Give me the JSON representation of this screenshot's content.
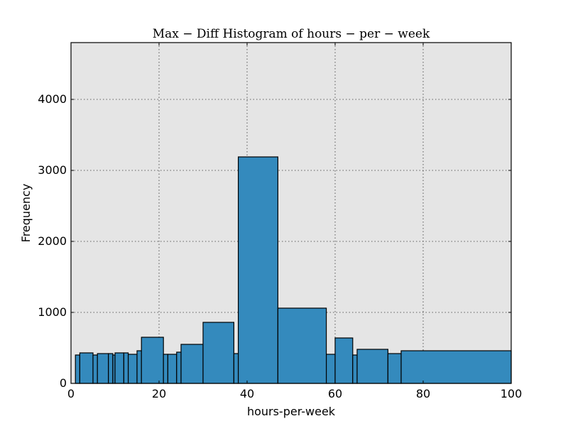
{
  "chart_data": {
    "type": "bar",
    "title": "Max − Diff Histogram of hours − per − week",
    "xlabel": "hours-per-week",
    "ylabel": "Frequency",
    "xlim": [
      0,
      100
    ],
    "ylim": [
      0,
      4800
    ],
    "xticks": [
      0,
      20,
      40,
      60,
      80,
      100
    ],
    "yticks": [
      0,
      1000,
      2000,
      3000,
      4000
    ],
    "grid": true,
    "bins": [
      {
        "x0": 1,
        "x1": 2,
        "value": 400
      },
      {
        "x0": 2,
        "x1": 5,
        "value": 430
      },
      {
        "x0": 5,
        "x1": 6,
        "value": 400
      },
      {
        "x0": 6,
        "x1": 8.5,
        "value": 420
      },
      {
        "x0": 8.5,
        "x1": 9.5,
        "value": 420
      },
      {
        "x0": 9.5,
        "x1": 10,
        "value": 400
      },
      {
        "x0": 10,
        "x1": 12,
        "value": 430
      },
      {
        "x0": 12,
        "x1": 13,
        "value": 430
      },
      {
        "x0": 13,
        "x1": 15,
        "value": 410
      },
      {
        "x0": 15,
        "x1": 16,
        "value": 460
      },
      {
        "x0": 16,
        "x1": 21,
        "value": 650
      },
      {
        "x0": 21,
        "x1": 22,
        "value": 410
      },
      {
        "x0": 22,
        "x1": 24,
        "value": 410
      },
      {
        "x0": 24,
        "x1": 25,
        "value": 440
      },
      {
        "x0": 25,
        "x1": 30,
        "value": 550
      },
      {
        "x0": 30,
        "x1": 37,
        "value": 860
      },
      {
        "x0": 37,
        "x1": 38,
        "value": 420
      },
      {
        "x0": 38,
        "x1": 47,
        "value": 3190
      },
      {
        "x0": 47,
        "x1": 58,
        "value": 1060
      },
      {
        "x0": 58,
        "x1": 60,
        "value": 410
      },
      {
        "x0": 60,
        "x1": 64,
        "value": 640
      },
      {
        "x0": 64,
        "x1": 65,
        "value": 400
      },
      {
        "x0": 65,
        "x1": 72,
        "value": 480
      },
      {
        "x0": 72,
        "x1": 75,
        "value": 420
      },
      {
        "x0": 75,
        "x1": 100,
        "value": 460
      }
    ]
  }
}
